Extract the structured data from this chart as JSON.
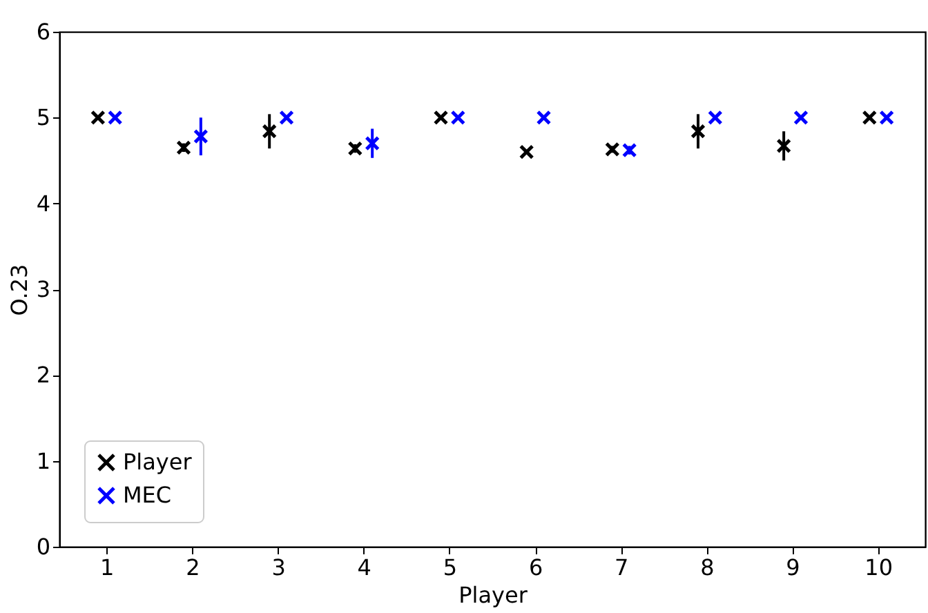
{
  "chart_data": {
    "type": "scatter",
    "xlabel": "Player",
    "ylabel": "O.23",
    "xlim": [
      0.45,
      10.55
    ],
    "xticks": [
      1,
      2,
      3,
      4,
      5,
      6,
      7,
      8,
      9,
      10
    ],
    "ylim": [
      0,
      6
    ],
    "yticks": [
      0,
      1,
      2,
      3,
      4,
      5,
      6
    ],
    "marker": "cross",
    "legend": "bottom left",
    "grid": false,
    "series": [
      {
        "name": "Player",
        "color": "#000000",
        "x": [
          0.9,
          1.9,
          2.9,
          3.9,
          4.9,
          5.9,
          6.9,
          7.9,
          8.9,
          9.9
        ],
        "values": [
          5,
          4.65,
          4.84,
          4.64,
          5,
          4.6,
          4.63,
          4.84,
          4.67,
          5
        ],
        "errors": [
          null,
          0.05,
          0.2,
          0.05,
          null,
          null,
          0.04,
          0.2,
          0.17,
          null
        ]
      },
      {
        "name": "MEC",
        "color": "#0000ff",
        "x": [
          1.1,
          2.1,
          3.1,
          4.1,
          5.1,
          6.1,
          7.1,
          8.1,
          9.1,
          10.1
        ],
        "values": [
          5,
          4.78,
          5,
          4.7,
          5,
          5,
          4.62,
          5,
          5,
          5
        ],
        "errors": [
          null,
          0.22,
          null,
          0.17,
          null,
          null,
          0.05,
          null,
          null,
          null
        ]
      }
    ]
  }
}
